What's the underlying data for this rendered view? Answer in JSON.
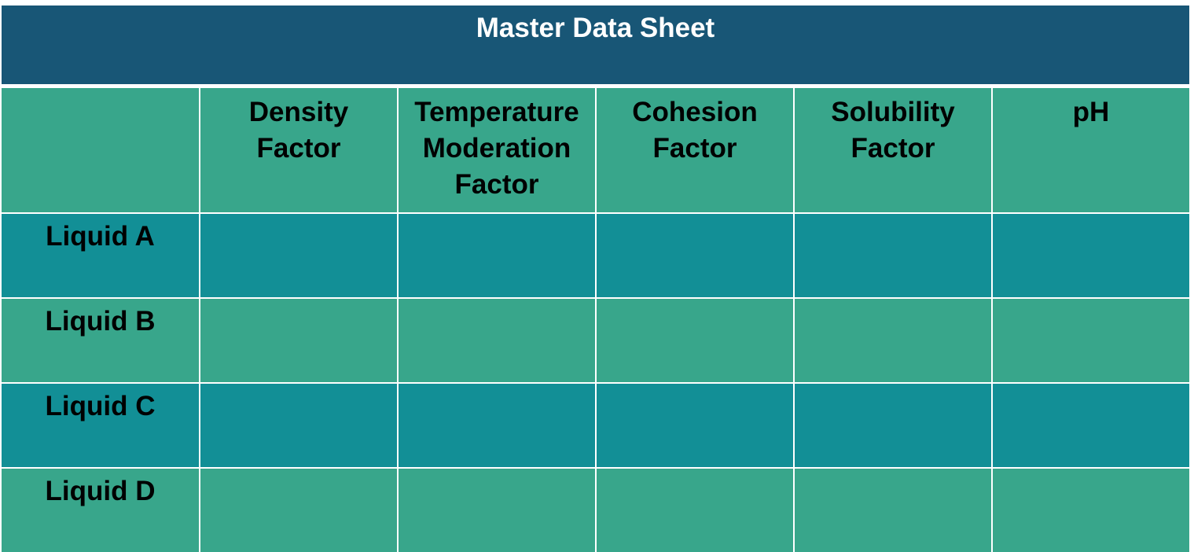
{
  "title": "Master Data Sheet",
  "columns": [
    {
      "line1": "",
      "line2": "",
      "line3": ""
    },
    {
      "line1": "Density",
      "line2": "Factor",
      "line3": ""
    },
    {
      "line1": "Temperature",
      "line2": "Moderation",
      "line3": "Factor"
    },
    {
      "line1": "Cohesion",
      "line2": "Factor",
      "line3": ""
    },
    {
      "line1": "Solubility",
      "line2": "Factor",
      "line3": ""
    },
    {
      "line1": "pH",
      "line2": "",
      "line3": ""
    }
  ],
  "rows": [
    {
      "label": "Liquid A",
      "cells": [
        "",
        "",
        "",
        "",
        ""
      ]
    },
    {
      "label": "Liquid B",
      "cells": [
        "",
        "",
        "",
        "",
        ""
      ]
    },
    {
      "label": "Liquid C",
      "cells": [
        "",
        "",
        "",
        "",
        ""
      ]
    },
    {
      "label": "Liquid D",
      "cells": [
        "",
        "",
        "",
        "",
        ""
      ]
    }
  ],
  "colors": {
    "title_bg": "#185676",
    "header_bg": "#38a68b",
    "row_dark": "#128f96",
    "row_light": "#38a68b",
    "grid_lines": "#ffffff"
  }
}
